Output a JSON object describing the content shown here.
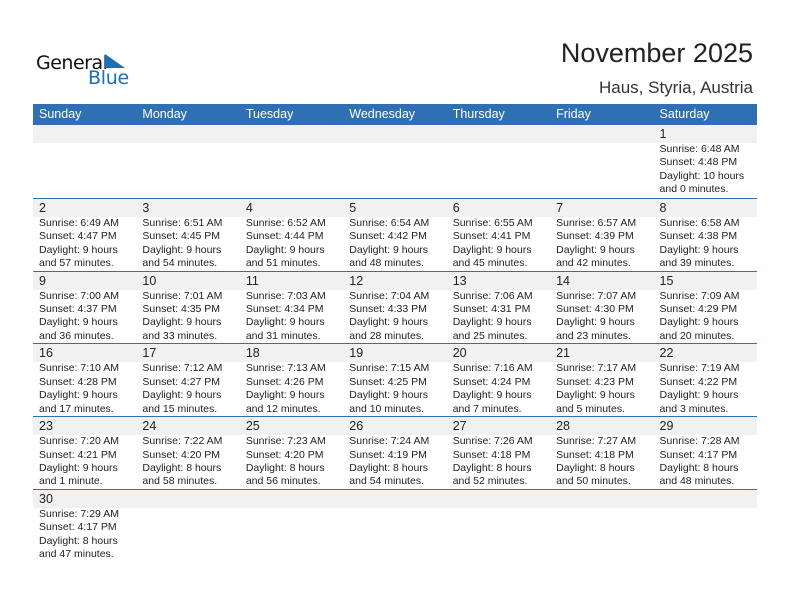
{
  "logo": {
    "line1": "General",
    "line2": "Blue"
  },
  "title": "November 2025",
  "location": "Haus, Styria, Austria",
  "colors": {
    "header": "#2e70b1",
    "accent": "#1a6fb8",
    "dayband": "#f1f1f1"
  },
  "days": [
    "Sunday",
    "Monday",
    "Tuesday",
    "Wednesday",
    "Thursday",
    "Friday",
    "Saturday"
  ],
  "weeks": [
    [
      null,
      null,
      null,
      null,
      null,
      null,
      {
        "day": "1",
        "sunrise": "Sunrise: 6:48 AM",
        "sunset": "Sunset: 4:48 PM",
        "daylight1": "Daylight: 10 hours",
        "daylight2": "and 0 minutes."
      }
    ],
    [
      {
        "day": "2",
        "sunrise": "Sunrise: 6:49 AM",
        "sunset": "Sunset: 4:47 PM",
        "daylight1": "Daylight: 9 hours",
        "daylight2": "and 57 minutes."
      },
      {
        "day": "3",
        "sunrise": "Sunrise: 6:51 AM",
        "sunset": "Sunset: 4:45 PM",
        "daylight1": "Daylight: 9 hours",
        "daylight2": "and 54 minutes."
      },
      {
        "day": "4",
        "sunrise": "Sunrise: 6:52 AM",
        "sunset": "Sunset: 4:44 PM",
        "daylight1": "Daylight: 9 hours",
        "daylight2": "and 51 minutes."
      },
      {
        "day": "5",
        "sunrise": "Sunrise: 6:54 AM",
        "sunset": "Sunset: 4:42 PM",
        "daylight1": "Daylight: 9 hours",
        "daylight2": "and 48 minutes."
      },
      {
        "day": "6",
        "sunrise": "Sunrise: 6:55 AM",
        "sunset": "Sunset: 4:41 PM",
        "daylight1": "Daylight: 9 hours",
        "daylight2": "and 45 minutes."
      },
      {
        "day": "7",
        "sunrise": "Sunrise: 6:57 AM",
        "sunset": "Sunset: 4:39 PM",
        "daylight1": "Daylight: 9 hours",
        "daylight2": "and 42 minutes."
      },
      {
        "day": "8",
        "sunrise": "Sunrise: 6:58 AM",
        "sunset": "Sunset: 4:38 PM",
        "daylight1": "Daylight: 9 hours",
        "daylight2": "and 39 minutes."
      }
    ],
    [
      {
        "day": "9",
        "sunrise": "Sunrise: 7:00 AM",
        "sunset": "Sunset: 4:37 PM",
        "daylight1": "Daylight: 9 hours",
        "daylight2": "and 36 minutes."
      },
      {
        "day": "10",
        "sunrise": "Sunrise: 7:01 AM",
        "sunset": "Sunset: 4:35 PM",
        "daylight1": "Daylight: 9 hours",
        "daylight2": "and 33 minutes."
      },
      {
        "day": "11",
        "sunrise": "Sunrise: 7:03 AM",
        "sunset": "Sunset: 4:34 PM",
        "daylight1": "Daylight: 9 hours",
        "daylight2": "and 31 minutes."
      },
      {
        "day": "12",
        "sunrise": "Sunrise: 7:04 AM",
        "sunset": "Sunset: 4:33 PM",
        "daylight1": "Daylight: 9 hours",
        "daylight2": "and 28 minutes."
      },
      {
        "day": "13",
        "sunrise": "Sunrise: 7:06 AM",
        "sunset": "Sunset: 4:31 PM",
        "daylight1": "Daylight: 9 hours",
        "daylight2": "and 25 minutes."
      },
      {
        "day": "14",
        "sunrise": "Sunrise: 7:07 AM",
        "sunset": "Sunset: 4:30 PM",
        "daylight1": "Daylight: 9 hours",
        "daylight2": "and 23 minutes."
      },
      {
        "day": "15",
        "sunrise": "Sunrise: 7:09 AM",
        "sunset": "Sunset: 4:29 PM",
        "daylight1": "Daylight: 9 hours",
        "daylight2": "and 20 minutes."
      }
    ],
    [
      {
        "day": "16",
        "sunrise": "Sunrise: 7:10 AM",
        "sunset": "Sunset: 4:28 PM",
        "daylight1": "Daylight: 9 hours",
        "daylight2": "and 17 minutes."
      },
      {
        "day": "17",
        "sunrise": "Sunrise: 7:12 AM",
        "sunset": "Sunset: 4:27 PM",
        "daylight1": "Daylight: 9 hours",
        "daylight2": "and 15 minutes."
      },
      {
        "day": "18",
        "sunrise": "Sunrise: 7:13 AM",
        "sunset": "Sunset: 4:26 PM",
        "daylight1": "Daylight: 9 hours",
        "daylight2": "and 12 minutes."
      },
      {
        "day": "19",
        "sunrise": "Sunrise: 7:15 AM",
        "sunset": "Sunset: 4:25 PM",
        "daylight1": "Daylight: 9 hours",
        "daylight2": "and 10 minutes."
      },
      {
        "day": "20",
        "sunrise": "Sunrise: 7:16 AM",
        "sunset": "Sunset: 4:24 PM",
        "daylight1": "Daylight: 9 hours",
        "daylight2": "and 7 minutes."
      },
      {
        "day": "21",
        "sunrise": "Sunrise: 7:17 AM",
        "sunset": "Sunset: 4:23 PM",
        "daylight1": "Daylight: 9 hours",
        "daylight2": "and 5 minutes."
      },
      {
        "day": "22",
        "sunrise": "Sunrise: 7:19 AM",
        "sunset": "Sunset: 4:22 PM",
        "daylight1": "Daylight: 9 hours",
        "daylight2": "and 3 minutes."
      }
    ],
    [
      {
        "day": "23",
        "sunrise": "Sunrise: 7:20 AM",
        "sunset": "Sunset: 4:21 PM",
        "daylight1": "Daylight: 9 hours",
        "daylight2": "and 1 minute."
      },
      {
        "day": "24",
        "sunrise": "Sunrise: 7:22 AM",
        "sunset": "Sunset: 4:20 PM",
        "daylight1": "Daylight: 8 hours",
        "daylight2": "and 58 minutes."
      },
      {
        "day": "25",
        "sunrise": "Sunrise: 7:23 AM",
        "sunset": "Sunset: 4:20 PM",
        "daylight1": "Daylight: 8 hours",
        "daylight2": "and 56 minutes."
      },
      {
        "day": "26",
        "sunrise": "Sunrise: 7:24 AM",
        "sunset": "Sunset: 4:19 PM",
        "daylight1": "Daylight: 8 hours",
        "daylight2": "and 54 minutes."
      },
      {
        "day": "27",
        "sunrise": "Sunrise: 7:26 AM",
        "sunset": "Sunset: 4:18 PM",
        "daylight1": "Daylight: 8 hours",
        "daylight2": "and 52 minutes."
      },
      {
        "day": "28",
        "sunrise": "Sunrise: 7:27 AM",
        "sunset": "Sunset: 4:18 PM",
        "daylight1": "Daylight: 8 hours",
        "daylight2": "and 50 minutes."
      },
      {
        "day": "29",
        "sunrise": "Sunrise: 7:28 AM",
        "sunset": "Sunset: 4:17 PM",
        "daylight1": "Daylight: 8 hours",
        "daylight2": "and 48 minutes."
      }
    ],
    [
      {
        "day": "30",
        "sunrise": "Sunrise: 7:29 AM",
        "sunset": "Sunset: 4:17 PM",
        "daylight1": "Daylight: 8 hours",
        "daylight2": "and 47 minutes."
      },
      null,
      null,
      null,
      null,
      null,
      null
    ]
  ]
}
